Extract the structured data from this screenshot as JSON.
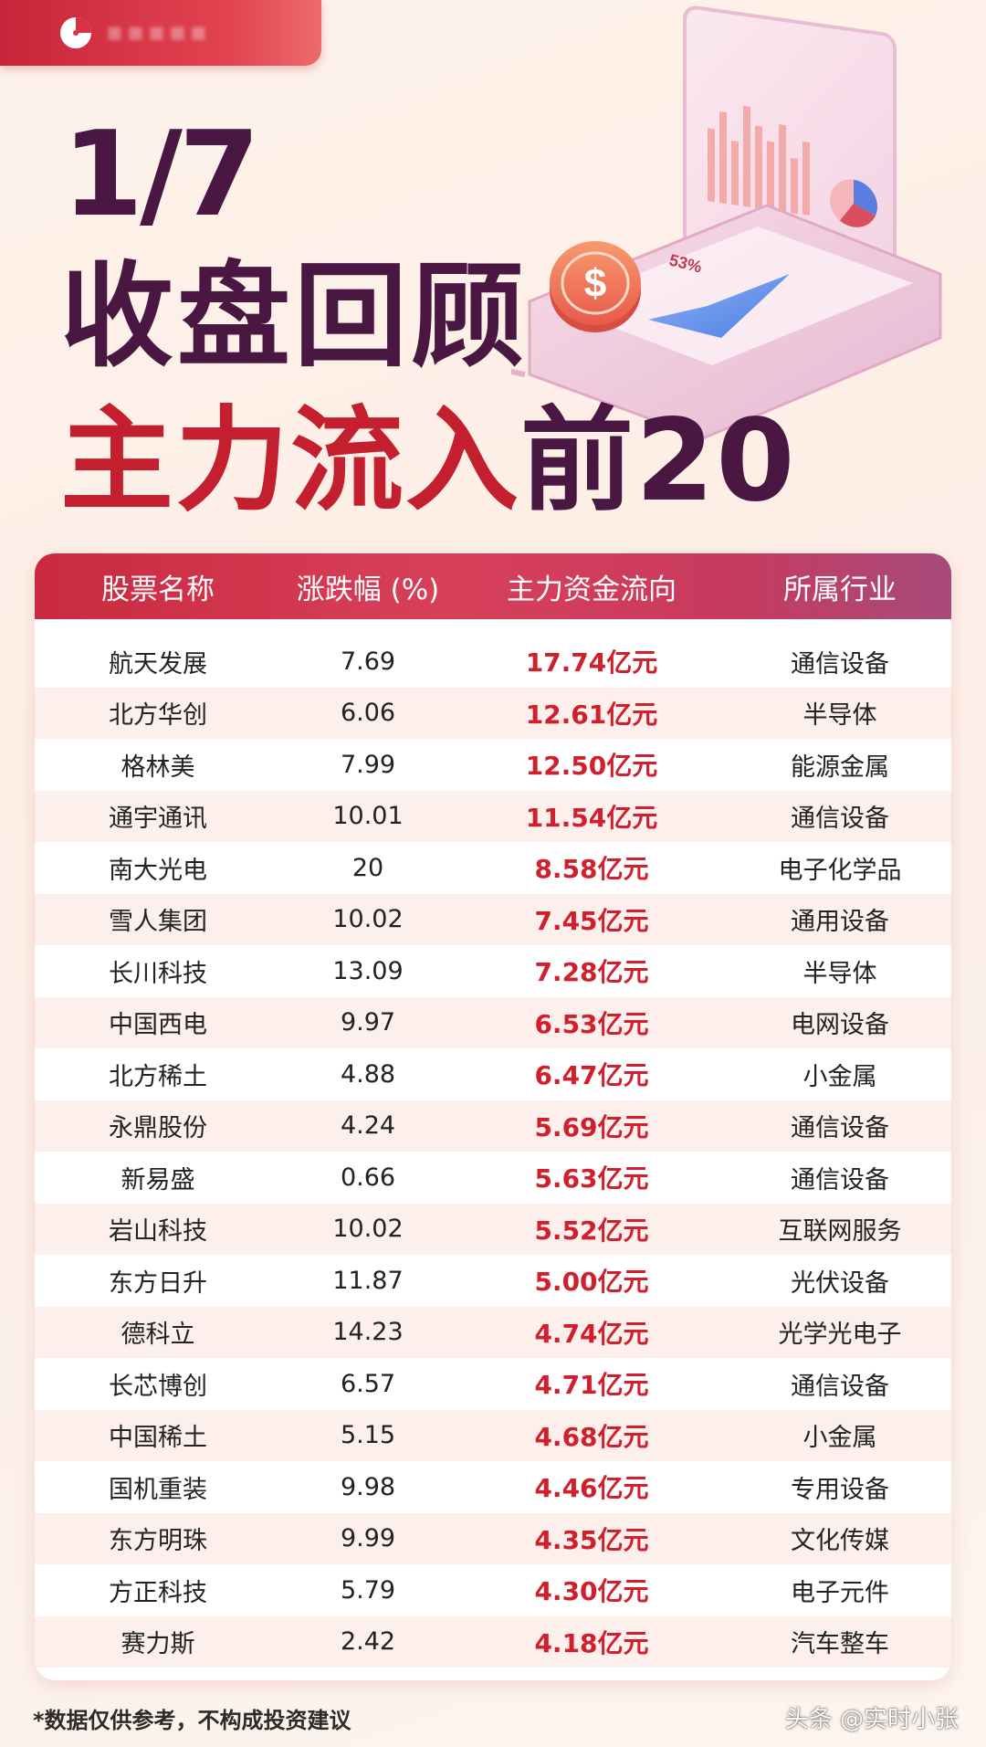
{
  "header": {
    "date": "1/7",
    "title": "收盘回顾",
    "subtitle_red": "主力流入",
    "subtitle_dark": "前20"
  },
  "illustration": {
    "percent_label": "53%",
    "icon": "dollar-coin-icon"
  },
  "table": {
    "columns": [
      "股票名称",
      "涨跌幅 (%)",
      "主力资金流向",
      "所属行业"
    ],
    "rows": [
      {
        "name": "航天发展",
        "change": "7.69",
        "flow": "17.74亿元",
        "industry": "通信设备"
      },
      {
        "name": "北方华创",
        "change": "6.06",
        "flow": "12.61亿元",
        "industry": "半导体"
      },
      {
        "name": "格林美",
        "change": "7.99",
        "flow": "12.50亿元",
        "industry": "能源金属"
      },
      {
        "name": "通宇通讯",
        "change": "10.01",
        "flow": "11.54亿元",
        "industry": "通信设备"
      },
      {
        "name": "南大光电",
        "change": "20",
        "flow": "8.58亿元",
        "industry": "电子化学品"
      },
      {
        "name": "雪人集团",
        "change": "10.02",
        "flow": "7.45亿元",
        "industry": "通用设备"
      },
      {
        "name": "长川科技",
        "change": "13.09",
        "flow": "7.28亿元",
        "industry": "半导体"
      },
      {
        "name": "中国西电",
        "change": "9.97",
        "flow": "6.53亿元",
        "industry": "电网设备"
      },
      {
        "name": "北方稀土",
        "change": "4.88",
        "flow": "6.47亿元",
        "industry": "小金属"
      },
      {
        "name": "永鼎股份",
        "change": "4.24",
        "flow": "5.69亿元",
        "industry": "通信设备"
      },
      {
        "name": "新易盛",
        "change": "0.66",
        "flow": "5.63亿元",
        "industry": "通信设备"
      },
      {
        "name": "岩山科技",
        "change": "10.02",
        "flow": "5.52亿元",
        "industry": "互联网服务"
      },
      {
        "name": "东方日升",
        "change": "11.87",
        "flow": "5.00亿元",
        "industry": "光伏设备"
      },
      {
        "name": "德科立",
        "change": "14.23",
        "flow": "4.74亿元",
        "industry": "光学光电子"
      },
      {
        "name": "长芯博创",
        "change": "6.57",
        "flow": "4.71亿元",
        "industry": "通信设备"
      },
      {
        "name": "中国稀土",
        "change": "5.15",
        "flow": "4.68亿元",
        "industry": "小金属"
      },
      {
        "name": "国机重装",
        "change": "9.98",
        "flow": "4.46亿元",
        "industry": "专用设备"
      },
      {
        "name": "东方明珠",
        "change": "9.99",
        "flow": "4.35亿元",
        "industry": "文化传媒"
      },
      {
        "name": "方正科技",
        "change": "5.79",
        "flow": "4.30亿元",
        "industry": "电子元件"
      },
      {
        "name": "赛力斯",
        "change": "2.42",
        "flow": "4.18亿元",
        "industry": "汽车整车"
      }
    ]
  },
  "footer": {
    "disclaimer": "*数据仅供参考，不构成投资建议",
    "watermark": "头条 @实时小张"
  },
  "colors": {
    "accent_red": "#c41f2e",
    "title_purple": "#4a1743",
    "header_gradient_start": "#c92a3f",
    "header_gradient_end": "#a64a7a",
    "row_stripe": "#fdf0ec"
  }
}
